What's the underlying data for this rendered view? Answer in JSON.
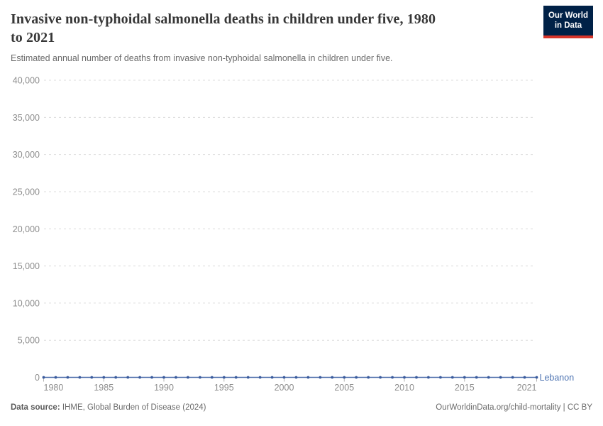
{
  "header": {
    "title": "Invasive non-typhoidal salmonella deaths in children under five, 1980\nto 2021",
    "subtitle": "Estimated annual number of deaths from invasive non-typhoidal salmonella in children under five."
  },
  "logo": {
    "line1": "Our World",
    "line2": "in Data",
    "bg_color": "#002147",
    "stripe_color": "#d7352a"
  },
  "footer": {
    "source_label": "Data source:",
    "source_text": " IHME, Global Burden of Disease (2024)",
    "link_text": "OurWorldinData.org/child-mortality | CC BY"
  },
  "chart_data": {
    "type": "line",
    "title": "Invasive non-typhoidal salmonella deaths in children under five, 1980 to 2021",
    "subtitle": "Estimated annual number of deaths from invasive non-typhoidal salmonella in children under five.",
    "x": [
      1980,
      1981,
      1982,
      1983,
      1984,
      1985,
      1986,
      1987,
      1988,
      1989,
      1990,
      1991,
      1992,
      1993,
      1994,
      1995,
      1996,
      1997,
      1998,
      1999,
      2000,
      2001,
      2002,
      2003,
      2004,
      2005,
      2006,
      2007,
      2008,
      2009,
      2010,
      2011,
      2012,
      2013,
      2014,
      2015,
      2016,
      2017,
      2018,
      2019,
      2020,
      2021
    ],
    "series": [
      {
        "name": "Lebanon",
        "values": [
          0,
          0,
          0,
          0,
          0,
          0,
          0,
          0,
          0,
          0,
          0,
          0,
          0,
          0,
          0,
          0,
          0,
          0,
          0,
          0,
          0,
          0,
          0,
          0,
          0,
          0,
          0,
          0,
          0,
          0,
          0,
          0,
          0,
          0,
          0,
          0,
          0,
          0,
          0,
          0,
          0,
          0
        ]
      }
    ],
    "xlabel": "",
    "ylabel": "",
    "ylim": [
      0,
      40000
    ],
    "xlim": [
      1980,
      2021
    ],
    "ytick_values": [
      0,
      5000,
      10000,
      15000,
      20000,
      25000,
      30000,
      35000,
      40000
    ],
    "ytick_labels": [
      "0",
      "5,000",
      "10,000",
      "15,000",
      "20,000",
      "25,000",
      "30,000",
      "35,000",
      "40,000"
    ],
    "xtick_values": [
      1980,
      1985,
      1990,
      1995,
      2000,
      2005,
      2010,
      2015,
      2021
    ],
    "xtick_labels": [
      "1980",
      "1985",
      "1990",
      "1995",
      "2000",
      "2005",
      "2010",
      "2015",
      "2021"
    ],
    "grid": "dashed-horizontal",
    "legend_position": "end-of-line",
    "entity_label": "Lebanon",
    "colors": {
      "line": "#4e6fab",
      "marker": "#3a5b9d",
      "entity_label": "#4e74b2",
      "gridline": "#dcdcdc",
      "axis_text": "#8d8d8d",
      "tick_mark": "#b3b3b3"
    }
  }
}
